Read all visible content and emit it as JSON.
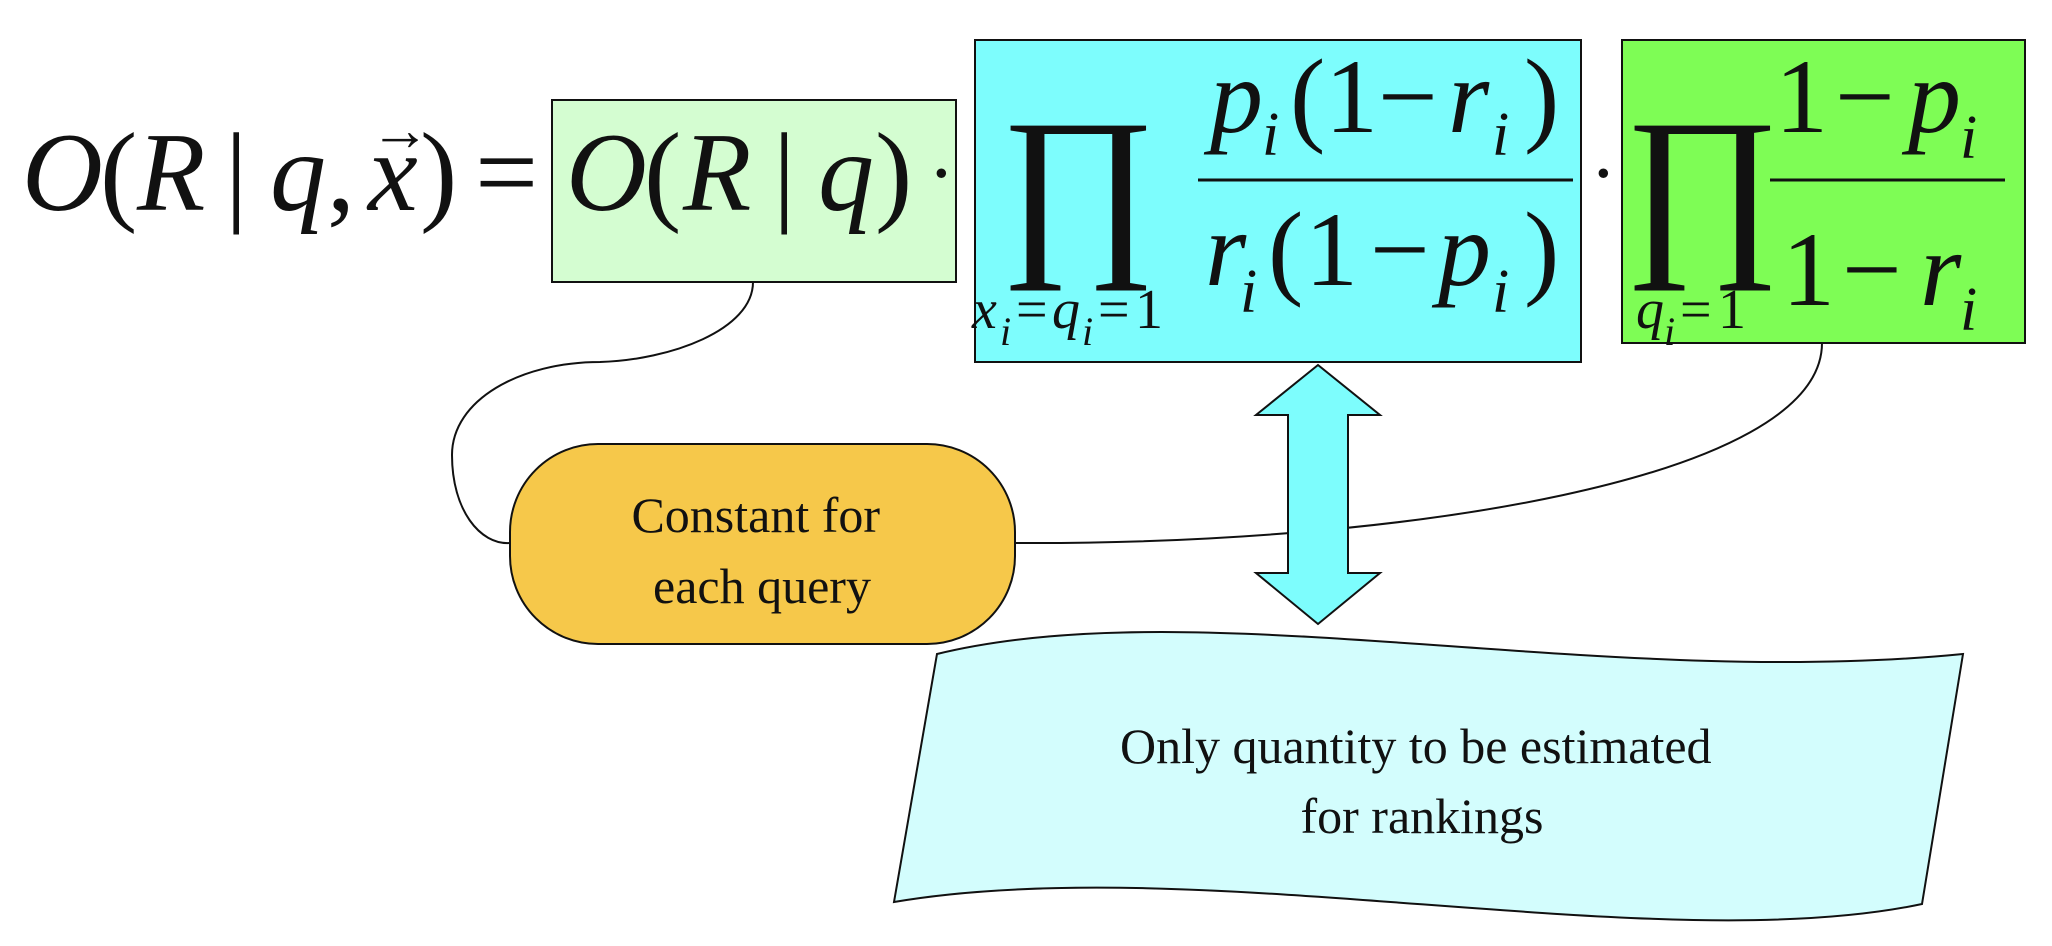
{
  "equation": {
    "lhs": {
      "O": "O",
      "open": "(",
      "R": "R",
      "bar": "|",
      "q": "q",
      "comma": ",",
      "x": "x",
      "arrow": "→",
      "close": ")"
    },
    "equals": "=",
    "box_left": {
      "O": "O",
      "open": "(",
      "R": "R",
      "bar": "|",
      "q": "q",
      "close": ")"
    },
    "dot": "·",
    "product_symbol": "∏",
    "prod1_subscript": {
      "x": "x",
      "i1": "i",
      "eq1": "=",
      "q": "q",
      "i2": "i",
      "eq2": "=",
      "one": "1"
    },
    "frac1_num": {
      "p": "p",
      "i": "i",
      "open": "(",
      "one": "1",
      "minus": "−",
      "r": "r",
      "i2": "i",
      "close": ")"
    },
    "frac1_den": {
      "r": "r",
      "i": "i",
      "open": "(",
      "one": "1",
      "minus": "−",
      "p": "p",
      "i2": "i",
      "close": ")"
    },
    "prod2_subscript": {
      "q": "q",
      "i": "i",
      "eq": "=",
      "one": "1"
    },
    "frac2_num": {
      "one": "1",
      "minus": "−",
      "p": "p",
      "i": "i"
    },
    "frac2_den": {
      "one": "1",
      "minus": "−",
      "r": "r",
      "i": "i"
    }
  },
  "callout_constant": {
    "line1": "Constant for",
    "line2": "each query"
  },
  "callout_estimate": {
    "line1": "Only quantity to be estimated",
    "line2": "for rankings"
  },
  "colors": {
    "light_green": "#d4fdd1",
    "cyan": "#7dfdfd",
    "green": "#7efd55",
    "orange": "#f6c84a",
    "pale_cyan": "#d3fdfd",
    "stroke": "#111111"
  }
}
